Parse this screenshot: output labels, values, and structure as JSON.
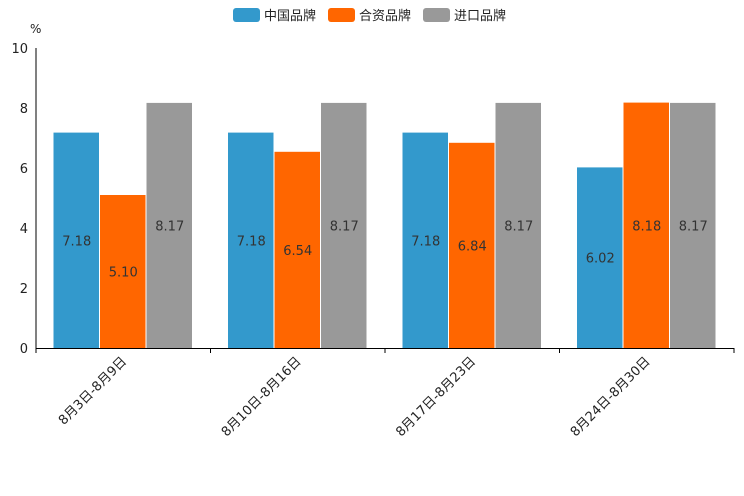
{
  "chart_data": {
    "type": "bar",
    "unit": "%",
    "categories": [
      "8月3日-8月9日",
      "8月10日-8月16日",
      "8月17日-8月23日",
      "8月24日-8月30日"
    ],
    "series": [
      {
        "name": "中国品牌",
        "color": "#3399cc",
        "values": [
          7.18,
          7.18,
          7.18,
          6.02
        ],
        "labels": [
          "7.18",
          "7.18",
          "7.18",
          "6.02"
        ]
      },
      {
        "name": "合资品牌",
        "color": "#ff6600",
        "values": [
          5.1,
          6.54,
          6.84,
          8.18
        ],
        "labels": [
          "5.10",
          "6.54",
          "6.84",
          "8.18"
        ]
      },
      {
        "name": "进口品牌",
        "color": "#999999",
        "values": [
          8.17,
          8.17,
          8.17,
          8.17
        ],
        "labels": [
          "8.17",
          "8.17",
          "8.17",
          "8.17"
        ]
      }
    ],
    "yticks": [
      "0",
      "2",
      "4",
      "6",
      "8",
      "10"
    ],
    "ylim": [
      0,
      10
    ],
    "grid": false,
    "legend_position": "top-center"
  }
}
